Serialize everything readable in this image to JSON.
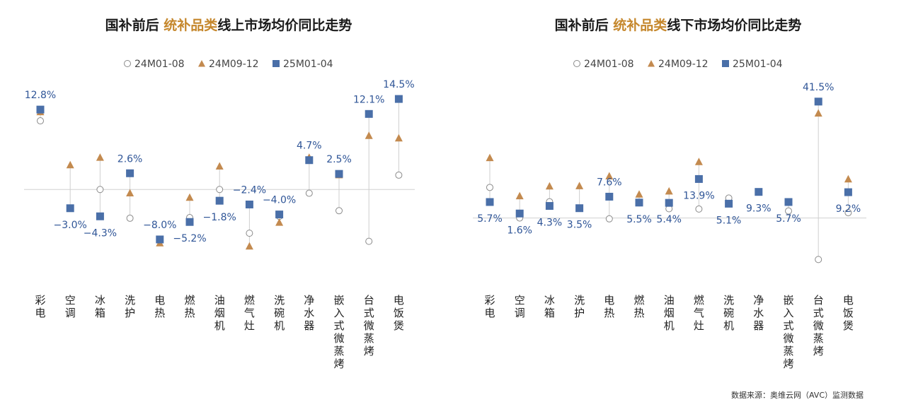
{
  "colors": {
    "hollow": "#8a8a8a",
    "triangle": "#c38a4f",
    "square": "#4a6fa8",
    "label": "#2f5597",
    "highlight": "#c5872c",
    "title": "#1a1a1a",
    "axis": "#d0d0d0"
  },
  "source": "数据来源：奥维云网（AVC）监测数据",
  "chart_data": [
    {
      "type": "scatter",
      "title_pre": "国补前后 ",
      "title_highlight": "统补品类",
      "title_post": "线上市场均价同比走势",
      "categories": [
        "彩电",
        "空调",
        "冰箱",
        "洗护",
        "电热",
        "燃热",
        "油烟机",
        "燃气灶",
        "洗碗机",
        "净水器",
        "嵌入式微蒸烤",
        "台式微蒸烤",
        "电饭煲"
      ],
      "series": [
        {
          "name": "24M01-08",
          "marker": "circle",
          "values": [
            11.0,
            null,
            0,
            -4.6,
            null,
            -4.5,
            0,
            -7.0,
            -4.3,
            -0.6,
            -3.4,
            -8.3,
            2.3
          ]
        },
        {
          "name": "24M09-12",
          "marker": "triangle",
          "values": [
            12.4,
            3.9,
            5.1,
            -0.6,
            -8.6,
            -1.3,
            3.7,
            -9.1,
            -5.3,
            5.1,
            2.3,
            8.6,
            8.2
          ]
        },
        {
          "name": "25M01-04",
          "marker": "square",
          "values": [
            12.8,
            -3.0,
            -4.3,
            2.6,
            -8.0,
            -5.2,
            -1.8,
            -2.4,
            -4.0,
            4.7,
            2.5,
            12.1,
            14.5
          ]
        }
      ],
      "data_labels": [
        "12.8%",
        "-3.0%",
        "-4.3%",
        "2.6%",
        "-8.0%",
        "-5.2%",
        "-1.8%",
        "-2.4%",
        "-4.0%",
        "4.7%",
        "2.5%",
        "12.1%",
        "14.5%"
      ],
      "label_pos": [
        "above",
        "below",
        "below",
        "above",
        "above",
        "below",
        "below",
        "above",
        "above",
        "above",
        "above",
        "above",
        "above"
      ],
      "ylim": [
        -14,
        17
      ]
    },
    {
      "type": "scatter",
      "title_pre": "国补前后 ",
      "title_highlight": "统补品类",
      "title_post": "线下市场均价同比走势",
      "categories": [
        "彩电",
        "空调",
        "冰箱",
        "洗护",
        "电热",
        "燃热",
        "油烟机",
        "燃气灶",
        "洗碗机",
        "净水器",
        "嵌入式微蒸烤",
        "台式微蒸烤",
        "电饭煲"
      ],
      "series": [
        {
          "name": "24M01-08",
          "marker": "circle",
          "values": [
            10.9,
            0,
            5.8,
            null,
            -0.3,
            5.4,
            3.3,
            3.2,
            7.1,
            null,
            2.5,
            -14.8,
            1.9
          ]
        },
        {
          "name": "24M09-12",
          "marker": "triangle",
          "values": [
            21.4,
            7.8,
            11.3,
            11.4,
            14.9,
            8.4,
            9.5,
            20.0,
            null,
            null,
            null,
            37.3,
            13.8
          ]
        },
        {
          "name": "25M01-04",
          "marker": "square",
          "values": [
            5.7,
            1.6,
            4.3,
            3.5,
            7.6,
            5.5,
            5.4,
            13.9,
            5.1,
            9.3,
            5.7,
            41.5,
            9.2
          ]
        }
      ],
      "data_labels": [
        "5.7%",
        "1.6%",
        "4.3%",
        "3.5%",
        "7.6%",
        "5.5%",
        "5.4%",
        "13.9%",
        "5.1%",
        "9.3%",
        "5.7%",
        "41.5%",
        "9.2%"
      ],
      "label_pos": [
        "below",
        "below",
        "below",
        "below",
        "above",
        "below",
        "below",
        "below",
        "below",
        "below",
        "below",
        "above",
        "below"
      ],
      "ylim": [
        -21,
        48
      ]
    }
  ]
}
